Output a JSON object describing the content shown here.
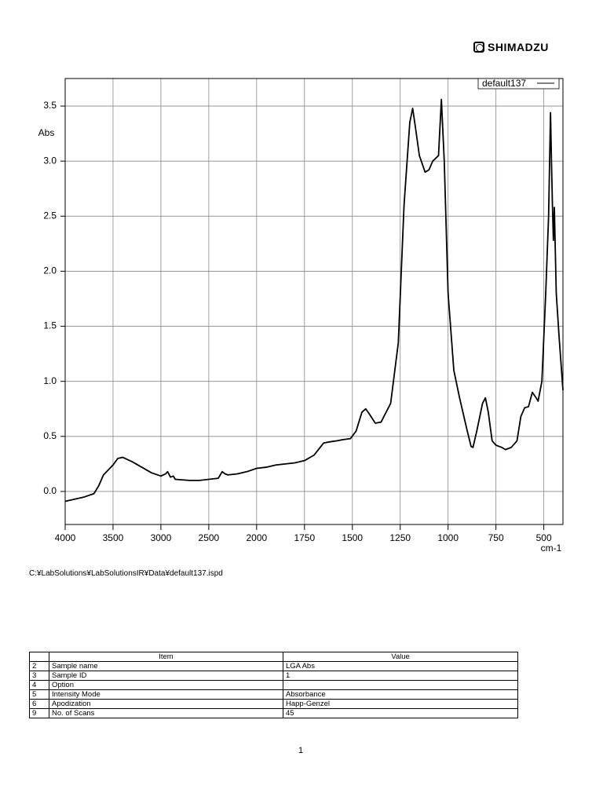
{
  "header": {
    "logo": "SHIMADZU"
  },
  "chart_data": {
    "type": "line",
    "ylabel": "Abs",
    "xlabel": "cm-1",
    "xlim": [
      4000,
      400
    ],
    "x_break": 2000,
    "x_break_ratio": 2,
    "xticks": [
      4000,
      3500,
      3000,
      2500,
      2000,
      1750,
      1500,
      1250,
      1000,
      750,
      500
    ],
    "ylim": [
      -0.3,
      3.75
    ],
    "yticks": [
      {
        "value": 0,
        "label": "0.0"
      },
      0.5,
      {
        "value": 1,
        "label": "1.0"
      },
      1.5,
      {
        "value": 2,
        "label": "2.0"
      },
      2.5,
      {
        "value": 3,
        "label": "3.0"
      },
      3.5
    ],
    "grid": true,
    "legend": "top-right",
    "x": [
      4000,
      3900,
      3800,
      3700,
      3650,
      3600,
      3500,
      3450,
      3400,
      3300,
      3200,
      3100,
      3000,
      2950,
      2930,
      2900,
      2870,
      2850,
      2700,
      2600,
      2500,
      2400,
      2360,
      2330,
      2300,
      2200,
      2100,
      2000,
      1950,
      1900,
      1850,
      1800,
      1750,
      1700,
      1650,
      1620,
      1580,
      1550,
      1510,
      1480,
      1450,
      1430,
      1410,
      1380,
      1350,
      1300,
      1260,
      1230,
      1200,
      1185,
      1170,
      1150,
      1120,
      1100,
      1080,
      1050,
      1035,
      1020,
      1000,
      970,
      940,
      900,
      880,
      870,
      850,
      820,
      805,
      790,
      770,
      750,
      720,
      700,
      670,
      640,
      620,
      600,
      580,
      560,
      540,
      530,
      510,
      490,
      475,
      465,
      460,
      455,
      450,
      445,
      435,
      420,
      400
    ],
    "series": [
      {
        "name": "default137",
        "color": "#000000",
        "values": [
          -0.09,
          -0.07,
          -0.05,
          -0.02,
          0.05,
          0.15,
          0.24,
          0.3,
          0.31,
          0.27,
          0.22,
          0.17,
          0.14,
          0.16,
          0.18,
          0.13,
          0.14,
          0.11,
          0.1,
          0.1,
          0.11,
          0.12,
          0.18,
          0.16,
          0.15,
          0.16,
          0.18,
          0.21,
          0.22,
          0.24,
          0.25,
          0.26,
          0.28,
          0.33,
          0.44,
          0.45,
          0.46,
          0.47,
          0.48,
          0.55,
          0.72,
          0.75,
          0.7,
          0.62,
          0.63,
          0.8,
          1.35,
          2.6,
          3.35,
          3.48,
          3.3,
          3.05,
          2.9,
          2.92,
          3.0,
          3.05,
          3.56,
          3.0,
          1.8,
          1.1,
          0.85,
          0.55,
          0.41,
          0.4,
          0.55,
          0.8,
          0.85,
          0.72,
          0.46,
          0.42,
          0.4,
          0.38,
          0.4,
          0.46,
          0.68,
          0.76,
          0.77,
          0.9,
          0.85,
          0.82,
          1.0,
          1.8,
          2.5,
          3.44,
          3.0,
          2.6,
          2.28,
          2.58,
          1.8,
          1.4,
          0.92
        ]
      }
    ]
  },
  "file_path": "C:¥LabSolutions¥LabSolutionsIR¥Data¥default137.ispd",
  "table": {
    "header": [
      "Item",
      "Value"
    ],
    "rows": [
      [
        "2",
        "Sample name",
        "LGA Abs"
      ],
      [
        "3",
        "Sample ID",
        "1"
      ],
      [
        "4",
        "Option"
      ],
      [
        "5",
        "Intensity Mode",
        "Absorbance"
      ],
      [
        "6",
        "Apodization",
        "Happ-Genzel"
      ],
      [
        "9",
        "No. of Scans",
        "45"
      ]
    ]
  },
  "page_number": "1"
}
